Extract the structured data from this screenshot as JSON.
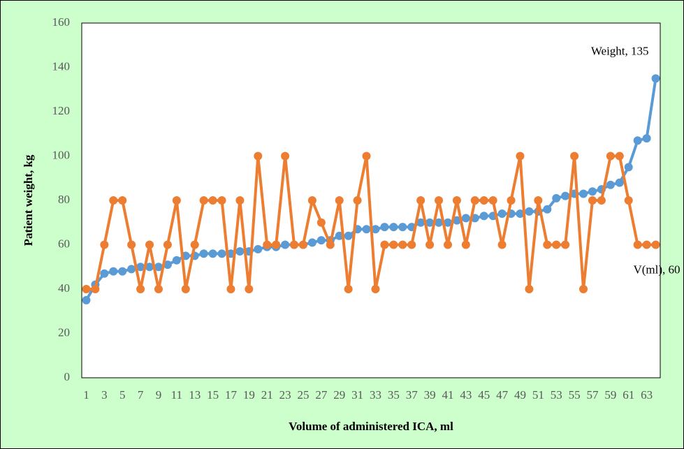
{
  "chart_data": {
    "type": "line",
    "y_label": "Patient weight, kg",
    "x_label": "Volume of administered ICA, ml",
    "categories": [
      "1",
      null,
      "3",
      null,
      "5",
      null,
      "7",
      null,
      "9",
      null,
      "11",
      null,
      "13",
      null,
      "15",
      null,
      "17",
      null,
      "19",
      null,
      "21",
      null,
      "23",
      null,
      "25",
      null,
      "27",
      null,
      "29",
      null,
      "31",
      null,
      "33",
      null,
      "35",
      null,
      "37",
      null,
      "39",
      null,
      "41",
      null,
      "43",
      null,
      "45",
      null,
      "47",
      null,
      "49",
      null,
      "51",
      null,
      "53",
      null,
      "55",
      null,
      "57",
      null,
      "59",
      null,
      "61",
      null,
      "63",
      null
    ],
    "series": [
      {
        "name": "Weight",
        "color": "#5b9bd5",
        "values": [
          35,
          42,
          47,
          48,
          48,
          49,
          50,
          50,
          50,
          51,
          53,
          55,
          55,
          56,
          56,
          56,
          56,
          57,
          57,
          58,
          59,
          59,
          60,
          60,
          60,
          61,
          62,
          62,
          64,
          64,
          67,
          67,
          67,
          68,
          68,
          68,
          68,
          70,
          70,
          70,
          70,
          71,
          72,
          72,
          73,
          73,
          74,
          74,
          74,
          75,
          75,
          76,
          81,
          82,
          83,
          83,
          84,
          85,
          87,
          88,
          95,
          107,
          108,
          135
        ],
        "value_labels": [
          null,
          null,
          null,
          null,
          null,
          null,
          null,
          null,
          null,
          null,
          null,
          null,
          null,
          null,
          null,
          null,
          null,
          null,
          null,
          null,
          null,
          null,
          null,
          null,
          null,
          null,
          null,
          null,
          null,
          null,
          null,
          null,
          null,
          null,
          null,
          null,
          null,
          null,
          null,
          null,
          null,
          null,
          null,
          null,
          null,
          null,
          null,
          null,
          null,
          null,
          null,
          null,
          null,
          null,
          null,
          null,
          null,
          null,
          null,
          null,
          null,
          null,
          null,
          "Weight, 135"
        ]
      },
      {
        "name": "V(ml)",
        "color": "#ed7d31",
        "values": [
          40,
          40,
          60,
          80,
          80,
          60,
          40,
          60,
          40,
          60,
          80,
          40,
          60,
          80,
          80,
          80,
          40,
          80,
          40,
          100,
          60,
          60,
          100,
          60,
          60,
          80,
          70,
          60,
          80,
          40,
          80,
          100,
          40,
          60,
          60,
          60,
          60,
          80,
          60,
          80,
          60,
          80,
          60,
          80,
          80,
          80,
          60,
          80,
          100,
          40,
          80,
          60,
          60,
          60,
          100,
          40,
          80,
          80,
          100,
          100,
          80,
          60,
          60,
          60
        ],
        "value_labels": [
          null,
          null,
          null,
          null,
          null,
          null,
          null,
          null,
          null,
          null,
          null,
          null,
          null,
          null,
          null,
          null,
          null,
          null,
          null,
          null,
          null,
          null,
          null,
          null,
          null,
          null,
          null,
          null,
          null,
          null,
          null,
          null,
          null,
          null,
          null,
          null,
          null,
          null,
          null,
          null,
          null,
          null,
          null,
          null,
          null,
          null,
          null,
          null,
          null,
          null,
          null,
          null,
          null,
          null,
          null,
          null,
          null,
          null,
          null,
          null,
          null,
          null,
          null,
          "V(ml), 60"
        ]
      }
    ],
    "ylim": [
      0,
      160
    ],
    "yticks": [
      0,
      20,
      40,
      60,
      80,
      100,
      120,
      140,
      160
    ],
    "grid": false
  }
}
